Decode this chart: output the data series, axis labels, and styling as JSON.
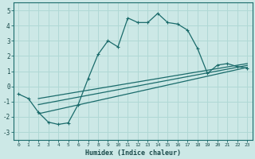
{
  "xlabel": "Humidex (Indice chaleur)",
  "ylabel": "",
  "xlim": [
    -0.5,
    23.5
  ],
  "ylim": [
    -3.5,
    5.5
  ],
  "xticks": [
    0,
    1,
    2,
    3,
    4,
    5,
    6,
    7,
    8,
    9,
    10,
    11,
    12,
    13,
    14,
    15,
    16,
    17,
    18,
    19,
    20,
    21,
    22,
    23
  ],
  "yticks": [
    -3,
    -2,
    -1,
    0,
    1,
    2,
    3,
    4,
    5
  ],
  "bg_color": "#cce8e6",
  "line_color": "#1a6b6b",
  "grid_color": "#b0d8d5",
  "main_x": [
    0,
    1,
    2,
    3,
    4,
    5,
    6,
    7,
    8,
    9,
    10,
    11,
    12,
    13,
    14,
    15,
    16,
    17,
    18,
    19,
    20,
    21,
    22,
    23
  ],
  "main_y": [
    -0.5,
    -0.8,
    -1.7,
    -2.35,
    -2.5,
    -2.4,
    -1.2,
    0.5,
    2.1,
    3.0,
    2.6,
    4.5,
    4.2,
    4.2,
    4.8,
    4.2,
    4.1,
    3.7,
    2.5,
    0.85,
    1.4,
    1.5,
    1.3,
    1.2
  ],
  "line1_x": [
    2,
    23
  ],
  "line1_y": [
    -1.8,
    1.25
  ],
  "line2_x": [
    2,
    23
  ],
  "line2_y": [
    -1.2,
    1.38
  ],
  "line3_x": [
    2,
    23
  ],
  "line3_y": [
    -0.8,
    1.5
  ]
}
